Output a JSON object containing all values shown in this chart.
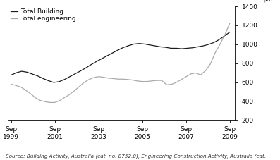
{
  "source_text": "Source: Building Activity, Australia (cat. no. 8752.0), Engineering Construction Activity, Australia (cat.",
  "legend": [
    "Total Building",
    "Total engineering"
  ],
  "line_colors": [
    "#1a1a1a",
    "#aaaaaa"
  ],
  "x_tick_labels": [
    "Sep\n1999",
    "Sep\n2001",
    "Sep\n2003",
    "Sep\n2005",
    "Sep\n2007",
    "Sep\n2009"
  ],
  "x_tick_positions": [
    0,
    8,
    16,
    24,
    32,
    40
  ],
  "ylim": [
    200,
    1400
  ],
  "yticks": [
    200,
    400,
    600,
    800,
    1000,
    1200,
    1400
  ],
  "total_building": [
    675,
    700,
    715,
    705,
    685,
    665,
    638,
    615,
    597,
    605,
    628,
    658,
    688,
    718,
    750,
    785,
    818,
    848,
    878,
    908,
    938,
    965,
    985,
    1002,
    1008,
    1003,
    993,
    983,
    973,
    968,
    958,
    958,
    953,
    958,
    963,
    973,
    983,
    998,
    1018,
    1048,
    1088,
    1128
  ],
  "total_engineering": [
    578,
    565,
    548,
    515,
    478,
    435,
    407,
    393,
    385,
    385,
    405,
    438,
    468,
    508,
    552,
    597,
    627,
    648,
    658,
    652,
    642,
    638,
    632,
    632,
    628,
    622,
    612,
    607,
    607,
    613,
    618,
    618,
    572,
    577,
    597,
    627,
    657,
    687,
    697,
    677,
    720,
    790,
    910,
    1000,
    1100,
    1220
  ],
  "background_color": "#ffffff",
  "line_width": 0.9,
  "fontsize_legend": 6.5,
  "fontsize_ticks": 6.5,
  "fontsize_source": 5.2,
  "fontsize_ylabel": 6.5
}
